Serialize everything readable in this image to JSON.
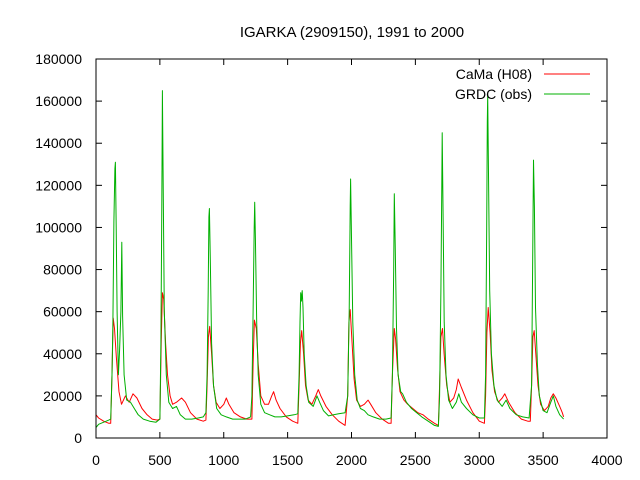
{
  "chart_data": {
    "type": "line",
    "title": "IGARKA (2909150), 1991 to 2000",
    "xlabel": "",
    "ylabel": "",
    "xlim": [
      0,
      4000
    ],
    "ylim": [
      0,
      180000
    ],
    "xticks": [
      0,
      500,
      1000,
      1500,
      2000,
      2500,
      3000,
      3500,
      4000
    ],
    "yticks": [
      0,
      20000,
      40000,
      60000,
      80000,
      100000,
      120000,
      140000,
      160000,
      180000
    ],
    "grid": false,
    "legend_position": "top-right",
    "series": [
      {
        "name": "CaMa (H08)",
        "color": "#ff0000",
        "points": [
          [
            0,
            11000
          ],
          [
            20,
            9500
          ],
          [
            60,
            8000
          ],
          [
            100,
            7000
          ],
          [
            115,
            7000
          ],
          [
            125,
            30000
          ],
          [
            135,
            57000
          ],
          [
            145,
            52000
          ],
          [
            160,
            38000
          ],
          [
            180,
            22000
          ],
          [
            200,
            16000
          ],
          [
            230,
            20000
          ],
          [
            260,
            17000
          ],
          [
            290,
            21000
          ],
          [
            320,
            19000
          ],
          [
            360,
            14000
          ],
          [
            400,
            11000
          ],
          [
            440,
            9000
          ],
          [
            480,
            8500
          ],
          [
            500,
            9000
          ],
          [
            510,
            45000
          ],
          [
            520,
            69000
          ],
          [
            530,
            66000
          ],
          [
            545,
            45000
          ],
          [
            560,
            30000
          ],
          [
            580,
            20000
          ],
          [
            600,
            16000
          ],
          [
            630,
            17000
          ],
          [
            670,
            19000
          ],
          [
            700,
            17000
          ],
          [
            740,
            12000
          ],
          [
            790,
            9000
          ],
          [
            840,
            8000
          ],
          [
            860,
            8500
          ],
          [
            870,
            25000
          ],
          [
            880,
            48000
          ],
          [
            890,
            53000
          ],
          [
            905,
            40000
          ],
          [
            920,
            25000
          ],
          [
            940,
            17000
          ],
          [
            970,
            14000
          ],
          [
            1000,
            16000
          ],
          [
            1020,
            19000
          ],
          [
            1040,
            16000
          ],
          [
            1080,
            12000
          ],
          [
            1130,
            10000
          ],
          [
            1180,
            9000
          ],
          [
            1220,
            9000
          ],
          [
            1230,
            35000
          ],
          [
            1240,
            56000
          ],
          [
            1255,
            52000
          ],
          [
            1270,
            35000
          ],
          [
            1290,
            20000
          ],
          [
            1320,
            16000
          ],
          [
            1350,
            16000
          ],
          [
            1375,
            20000
          ],
          [
            1390,
            22000
          ],
          [
            1410,
            18000
          ],
          [
            1440,
            14000
          ],
          [
            1490,
            10000
          ],
          [
            1540,
            8000
          ],
          [
            1580,
            7000
          ],
          [
            1590,
            25000
          ],
          [
            1600,
            45000
          ],
          [
            1610,
            51000
          ],
          [
            1625,
            40000
          ],
          [
            1640,
            25000
          ],
          [
            1660,
            18000
          ],
          [
            1690,
            16000
          ],
          [
            1720,
            20000
          ],
          [
            1740,
            23000
          ],
          [
            1760,
            20000
          ],
          [
            1800,
            15000
          ],
          [
            1850,
            11000
          ],
          [
            1900,
            8000
          ],
          [
            1950,
            6000
          ],
          [
            1970,
            20000
          ],
          [
            1980,
            55000
          ],
          [
            1990,
            61000
          ],
          [
            2005,
            45000
          ],
          [
            2020,
            28000
          ],
          [
            2040,
            18000
          ],
          [
            2070,
            15000
          ],
          [
            2100,
            16000
          ],
          [
            2130,
            18000
          ],
          [
            2150,
            16000
          ],
          [
            2190,
            12000
          ],
          [
            2240,
            9000
          ],
          [
            2290,
            7000
          ],
          [
            2310,
            7000
          ],
          [
            2320,
            30000
          ],
          [
            2335,
            52000
          ],
          [
            2345,
            47000
          ],
          [
            2360,
            33000
          ],
          [
            2380,
            22000
          ],
          [
            2410,
            18000
          ],
          [
            2440,
            16000
          ],
          [
            2480,
            14000
          ],
          [
            2520,
            12000
          ],
          [
            2560,
            11000
          ],
          [
            2600,
            9000
          ],
          [
            2650,
            7000
          ],
          [
            2680,
            6000
          ],
          [
            2690,
            25000
          ],
          [
            2700,
            48000
          ],
          [
            2712,
            52000
          ],
          [
            2725,
            40000
          ],
          [
            2745,
            25000
          ],
          [
            2770,
            17000
          ],
          [
            2800,
            19000
          ],
          [
            2820,
            23000
          ],
          [
            2835,
            28000
          ],
          [
            2860,
            24000
          ],
          [
            2900,
            18000
          ],
          [
            2950,
            12000
          ],
          [
            3000,
            8000
          ],
          [
            3040,
            7000
          ],
          [
            3050,
            20000
          ],
          [
            3060,
            50000
          ],
          [
            3070,
            62000
          ],
          [
            3085,
            50000
          ],
          [
            3100,
            32000
          ],
          [
            3120,
            22000
          ],
          [
            3150,
            17000
          ],
          [
            3180,
            19000
          ],
          [
            3200,
            21000
          ],
          [
            3230,
            17000
          ],
          [
            3280,
            12000
          ],
          [
            3330,
            9000
          ],
          [
            3380,
            8000
          ],
          [
            3400,
            8000
          ],
          [
            3410,
            25000
          ],
          [
            3420,
            48000
          ],
          [
            3430,
            51000
          ],
          [
            3445,
            38000
          ],
          [
            3460,
            25000
          ],
          [
            3480,
            16000
          ],
          [
            3510,
            13000
          ],
          [
            3540,
            15000
          ],
          [
            3560,
            19000
          ],
          [
            3580,
            21000
          ],
          [
            3600,
            19000
          ],
          [
            3630,
            15000
          ],
          [
            3650,
            12000
          ],
          [
            3660,
            10000
          ]
        ]
      },
      {
        "name": "GRDC (obs)",
        "color": "#00b000",
        "points": [
          [
            0,
            5000
          ],
          [
            20,
            6500
          ],
          [
            60,
            7500
          ],
          [
            100,
            8500
          ],
          [
            115,
            9000
          ],
          [
            125,
            30000
          ],
          [
            132,
            55000
          ],
          [
            140,
            103000
          ],
          [
            148,
            128000
          ],
          [
            152,
            131000
          ],
          [
            158,
            100000
          ],
          [
            165,
            60000
          ],
          [
            175,
            30000
          ],
          [
            185,
            42000
          ],
          [
            195,
            60000
          ],
          [
            202,
            93000
          ],
          [
            208,
            58000
          ],
          [
            220,
            30000
          ],
          [
            240,
            18000
          ],
          [
            270,
            17000
          ],
          [
            300,
            14000
          ],
          [
            330,
            11000
          ],
          [
            370,
            9000
          ],
          [
            420,
            8000
          ],
          [
            470,
            7500
          ],
          [
            500,
            9000
          ],
          [
            508,
            45000
          ],
          [
            515,
            110000
          ],
          [
            520,
            165000
          ],
          [
            526,
            120000
          ],
          [
            535,
            60000
          ],
          [
            550,
            30000
          ],
          [
            570,
            17000
          ],
          [
            600,
            14000
          ],
          [
            630,
            15000
          ],
          [
            660,
            11000
          ],
          [
            700,
            9000
          ],
          [
            750,
            9000
          ],
          [
            800,
            9500
          ],
          [
            840,
            10000
          ],
          [
            860,
            12000
          ],
          [
            870,
            30000
          ],
          [
            878,
            70000
          ],
          [
            884,
            105000
          ],
          [
            888,
            109000
          ],
          [
            895,
            85000
          ],
          [
            905,
            45000
          ],
          [
            920,
            25000
          ],
          [
            945,
            14000
          ],
          [
            980,
            11000
          ],
          [
            1020,
            10000
          ],
          [
            1070,
            9000
          ],
          [
            1120,
            9000
          ],
          [
            1170,
            9000
          ],
          [
            1210,
            10000
          ],
          [
            1220,
            20000
          ],
          [
            1230,
            60000
          ],
          [
            1238,
            100000
          ],
          [
            1242,
            112000
          ],
          [
            1248,
            95000
          ],
          [
            1258,
            55000
          ],
          [
            1270,
            30000
          ],
          [
            1290,
            16000
          ],
          [
            1320,
            12000
          ],
          [
            1360,
            11000
          ],
          [
            1400,
            10000
          ],
          [
            1450,
            10000
          ],
          [
            1500,
            10500
          ],
          [
            1550,
            11000
          ],
          [
            1580,
            11500
          ],
          [
            1590,
            30000
          ],
          [
            1597,
            55000
          ],
          [
            1602,
            69000
          ],
          [
            1608,
            65000
          ],
          [
            1614,
            70000
          ],
          [
            1620,
            62000
          ],
          [
            1630,
            40000
          ],
          [
            1645,
            25000
          ],
          [
            1665,
            17000
          ],
          [
            1700,
            15000
          ],
          [
            1730,
            20000
          ],
          [
            1750,
            17000
          ],
          [
            1780,
            13000
          ],
          [
            1820,
            10500
          ],
          [
            1860,
            11000
          ],
          [
            1900,
            11500
          ],
          [
            1950,
            12000
          ],
          [
            1970,
            20000
          ],
          [
            1982,
            60000
          ],
          [
            1990,
            110000
          ],
          [
            1993,
            123000
          ],
          [
            2000,
            95000
          ],
          [
            2010,
            55000
          ],
          [
            2025,
            30000
          ],
          [
            2045,
            18000
          ],
          [
            2070,
            14000
          ],
          [
            2100,
            13000
          ],
          [
            2130,
            11000
          ],
          [
            2170,
            10000
          ],
          [
            2220,
            9000
          ],
          [
            2270,
            9000
          ],
          [
            2310,
            9500
          ],
          [
            2320,
            30000
          ],
          [
            2330,
            80000
          ],
          [
            2335,
            116000
          ],
          [
            2342,
            92000
          ],
          [
            2352,
            52000
          ],
          [
            2365,
            30000
          ],
          [
            2385,
            22000
          ],
          [
            2400,
            21000
          ],
          [
            2430,
            17000
          ],
          [
            2470,
            14000
          ],
          [
            2510,
            12000
          ],
          [
            2550,
            10000
          ],
          [
            2600,
            8000
          ],
          [
            2650,
            6000
          ],
          [
            2680,
            5500
          ],
          [
            2690,
            20000
          ],
          [
            2700,
            70000
          ],
          [
            2707,
            120000
          ],
          [
            2710,
            145000
          ],
          [
            2716,
            110000
          ],
          [
            2726,
            55000
          ],
          [
            2740,
            30000
          ],
          [
            2760,
            18000
          ],
          [
            2790,
            14000
          ],
          [
            2820,
            17000
          ],
          [
            2840,
            21000
          ],
          [
            2860,
            17000
          ],
          [
            2900,
            14000
          ],
          [
            2950,
            11000
          ],
          [
            3000,
            9500
          ],
          [
            3040,
            9500
          ],
          [
            3050,
            30000
          ],
          [
            3058,
            100000
          ],
          [
            3063,
            150000
          ],
          [
            3066,
            163000
          ],
          [
            3072,
            130000
          ],
          [
            3082,
            70000
          ],
          [
            3095,
            40000
          ],
          [
            3115,
            25000
          ],
          [
            3140,
            18000
          ],
          [
            3180,
            15000
          ],
          [
            3210,
            18000
          ],
          [
            3240,
            14000
          ],
          [
            3290,
            11000
          ],
          [
            3340,
            10000
          ],
          [
            3390,
            9500
          ],
          [
            3410,
            25000
          ],
          [
            3418,
            80000
          ],
          [
            3425,
            132000
          ],
          [
            3432,
            110000
          ],
          [
            3440,
            62000
          ],
          [
            3455,
            35000
          ],
          [
            3470,
            20000
          ],
          [
            3500,
            13000
          ],
          [
            3530,
            12000
          ],
          [
            3560,
            17000
          ],
          [
            3580,
            20000
          ],
          [
            3600,
            15000
          ],
          [
            3630,
            11000
          ],
          [
            3660,
            9000
          ]
        ]
      }
    ]
  }
}
